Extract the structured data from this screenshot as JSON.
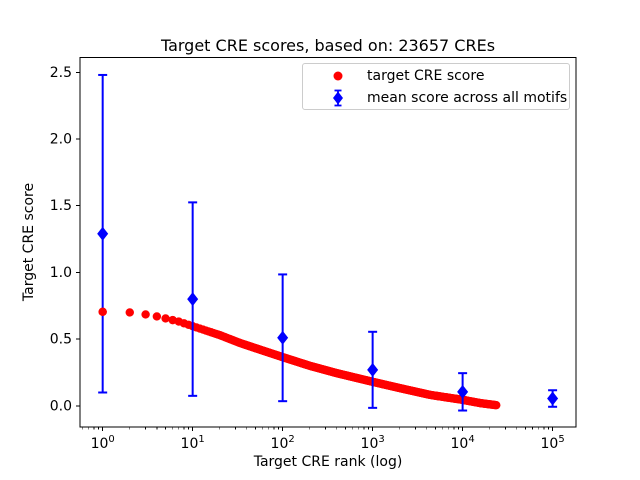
{
  "chart_data": {
    "type": "scatter",
    "title": "Target CRE scores, based on: 23657 CREs",
    "xlabel": "Target CRE rank (log)",
    "ylabel": "Target CRE score",
    "n_cres": 23657,
    "x_scale": "log",
    "xlim_log": [
      -0.252,
      5.26
    ],
    "ylim": [
      -0.16,
      2.61
    ],
    "x_tick_exponents": [
      0,
      1,
      2,
      3,
      4,
      5
    ],
    "y_ticks": [
      0.0,
      0.5,
      1.0,
      1.5,
      2.0,
      2.5
    ],
    "grid": false,
    "legend": {
      "position": "upper right",
      "items": [
        {
          "label": "target CRE score",
          "marker": "red-dot"
        },
        {
          "label": "mean score across all motifs",
          "marker": "blue-diamond-errorbar"
        }
      ]
    },
    "series": [
      {
        "name": "target CRE score",
        "color": "#ff0000",
        "marker": "circle",
        "max_rank": 23657,
        "curve_anchors_logx_y": [
          [
            0.0,
            0.705
          ],
          [
            0.301,
            0.7
          ],
          [
            0.477,
            0.685
          ],
          [
            0.602,
            0.67
          ],
          [
            0.699,
            0.655
          ],
          [
            0.845,
            0.632
          ],
          [
            1.0,
            0.597
          ],
          [
            1.301,
            0.53
          ],
          [
            1.53,
            0.47
          ],
          [
            1.699,
            0.432
          ],
          [
            2.0,
            0.365
          ],
          [
            2.301,
            0.3
          ],
          [
            2.6,
            0.245
          ],
          [
            3.0,
            0.18
          ],
          [
            3.301,
            0.133
          ],
          [
            3.638,
            0.082
          ],
          [
            4.0,
            0.045
          ],
          [
            4.2,
            0.02
          ],
          [
            4.374,
            0.005
          ]
        ]
      },
      {
        "name": "mean score across all motifs",
        "color": "#0000ff",
        "marker": "diamond",
        "x": [
          1,
          10,
          100,
          1000,
          10000,
          100000
        ],
        "y": [
          1.29,
          0.8,
          0.51,
          0.27,
          0.105,
          0.055
        ],
        "yerr": [
          1.19,
          0.725,
          0.475,
          0.285,
          0.14,
          0.062
        ]
      }
    ]
  }
}
